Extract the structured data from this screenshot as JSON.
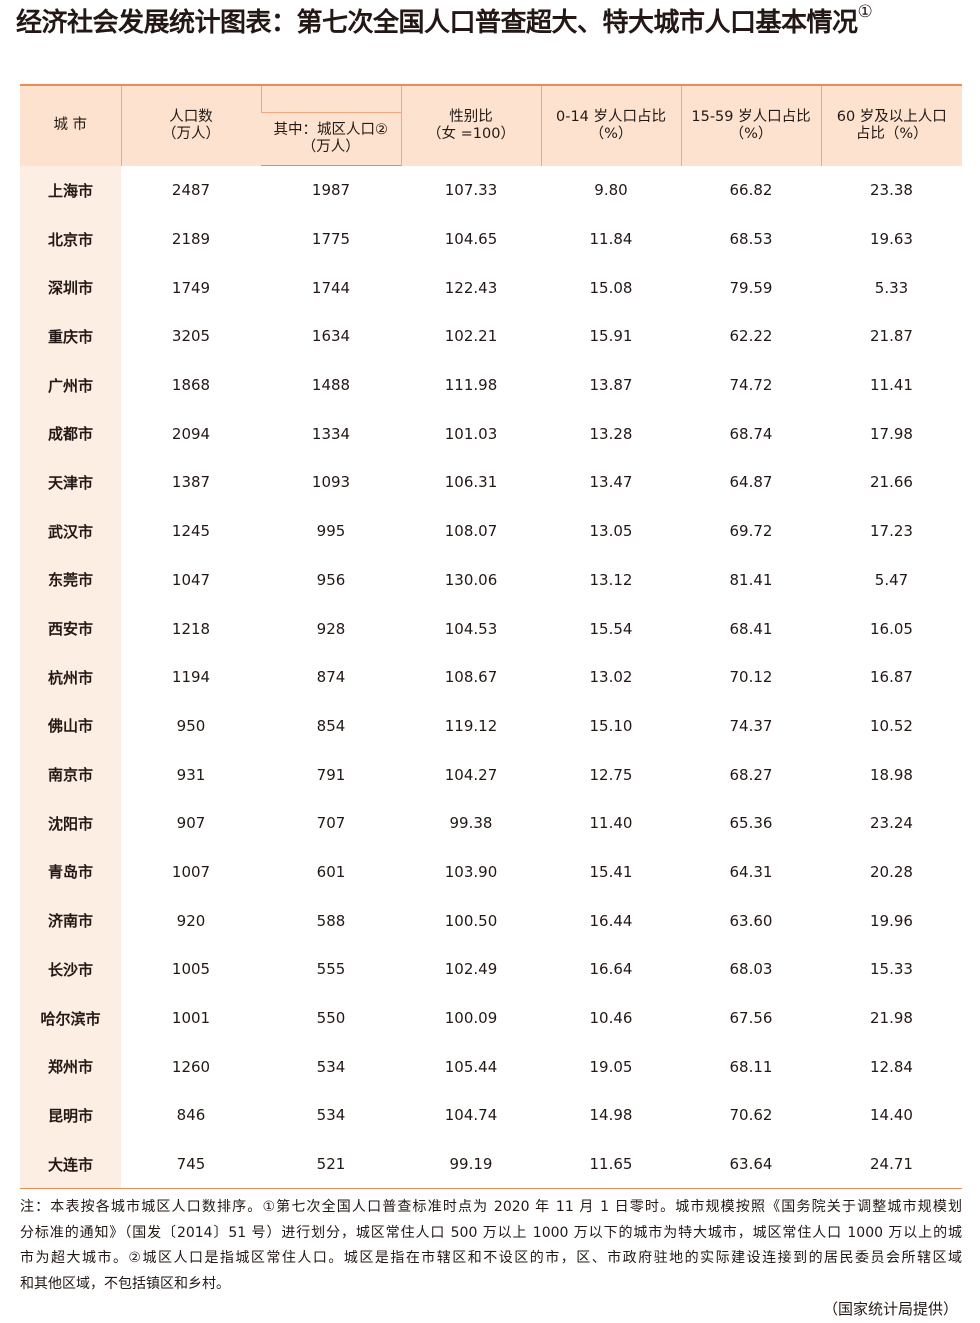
{
  "header": {
    "title": "经济社会发展统计图表：第七次全国人口普查超大、特大城市人口基本情况",
    "title_note": "①"
  },
  "table": {
    "headers": {
      "city": "城  市",
      "population": "人口数\n（万人）",
      "urban": "其中：城区人口②\n（万人）",
      "sex_ratio": "性别比\n（女 =100）",
      "age_0_14": "0-14 岁人口占比\n（%）",
      "age_15_59": "15-59 岁人口占比\n（%）",
      "age_60": "60 岁及以上人口\n占比（%）"
    },
    "rows": [
      [
        "上海市",
        "2487",
        "1987",
        "107.33",
        "9.80",
        "66.82",
        "23.38"
      ],
      [
        "北京市",
        "2189",
        "1775",
        "104.65",
        "11.84",
        "68.53",
        "19.63"
      ],
      [
        "深圳市",
        "1749",
        "1744",
        "122.43",
        "15.08",
        "79.59",
        "5.33"
      ],
      [
        "重庆市",
        "3205",
        "1634",
        "102.21",
        "15.91",
        "62.22",
        "21.87"
      ],
      [
        "广州市",
        "1868",
        "1488",
        "111.98",
        "13.87",
        "74.72",
        "11.41"
      ],
      [
        "成都市",
        "2094",
        "1334",
        "101.03",
        "13.28",
        "68.74",
        "17.98"
      ],
      [
        "天津市",
        "1387",
        "1093",
        "106.31",
        "13.47",
        "64.87",
        "21.66"
      ],
      [
        "武汉市",
        "1245",
        "995",
        "108.07",
        "13.05",
        "69.72",
        "17.23"
      ],
      [
        "东莞市",
        "1047",
        "956",
        "130.06",
        "13.12",
        "81.41",
        "5.47"
      ],
      [
        "西安市",
        "1218",
        "928",
        "104.53",
        "15.54",
        "68.41",
        "16.05"
      ],
      [
        "杭州市",
        "1194",
        "874",
        "108.67",
        "13.02",
        "70.12",
        "16.87"
      ],
      [
        "佛山市",
        "950",
        "854",
        "119.12",
        "15.10",
        "74.37",
        "10.52"
      ],
      [
        "南京市",
        "931",
        "791",
        "104.27",
        "12.75",
        "68.27",
        "18.98"
      ],
      [
        "沈阳市",
        "907",
        "707",
        "99.38",
        "11.40",
        "65.36",
        "23.24"
      ],
      [
        "青岛市",
        "1007",
        "601",
        "103.90",
        "15.41",
        "64.31",
        "20.28"
      ],
      [
        "济南市",
        "920",
        "588",
        "100.50",
        "16.44",
        "63.60",
        "19.96"
      ],
      [
        "长沙市",
        "1005",
        "555",
        "102.49",
        "16.64",
        "68.03",
        "15.33"
      ],
      [
        "哈尔滨市",
        "1001",
        "550",
        "100.09",
        "10.46",
        "67.56",
        "21.98"
      ],
      [
        "郑州市",
        "1260",
        "534",
        "105.44",
        "19.05",
        "68.11",
        "12.84"
      ],
      [
        "昆明市",
        "846",
        "534",
        "104.74",
        "14.98",
        "70.62",
        "14.40"
      ],
      [
        "大连市",
        "745",
        "521",
        "99.19",
        "11.65",
        "63.64",
        "24.71"
      ]
    ]
  },
  "notes": {
    "lines": [
      "注：本表按各城市城区人口数排序。①第七次全国人口普查标准时点为 2020 年 11 月 1 日零时。城市规模按照《国务院关于调整城市规模划",
      "分标准的通知》（国发〔2014〕51 号）进行划分，城区常住人口 500 万以上 1000 万以下的城市为特大城市，城区常住人口 1000 万以上的城",
      "市为超大城市。②城区人口是指城区常住人口。城区是指在市辖区和不设区的市，区、市政府驻地的实际建设连接到的居民委员会所辖区域",
      "和其他区域，不包括镇区和乡村。"
    ],
    "source": "（国家统计局提供）"
  }
}
